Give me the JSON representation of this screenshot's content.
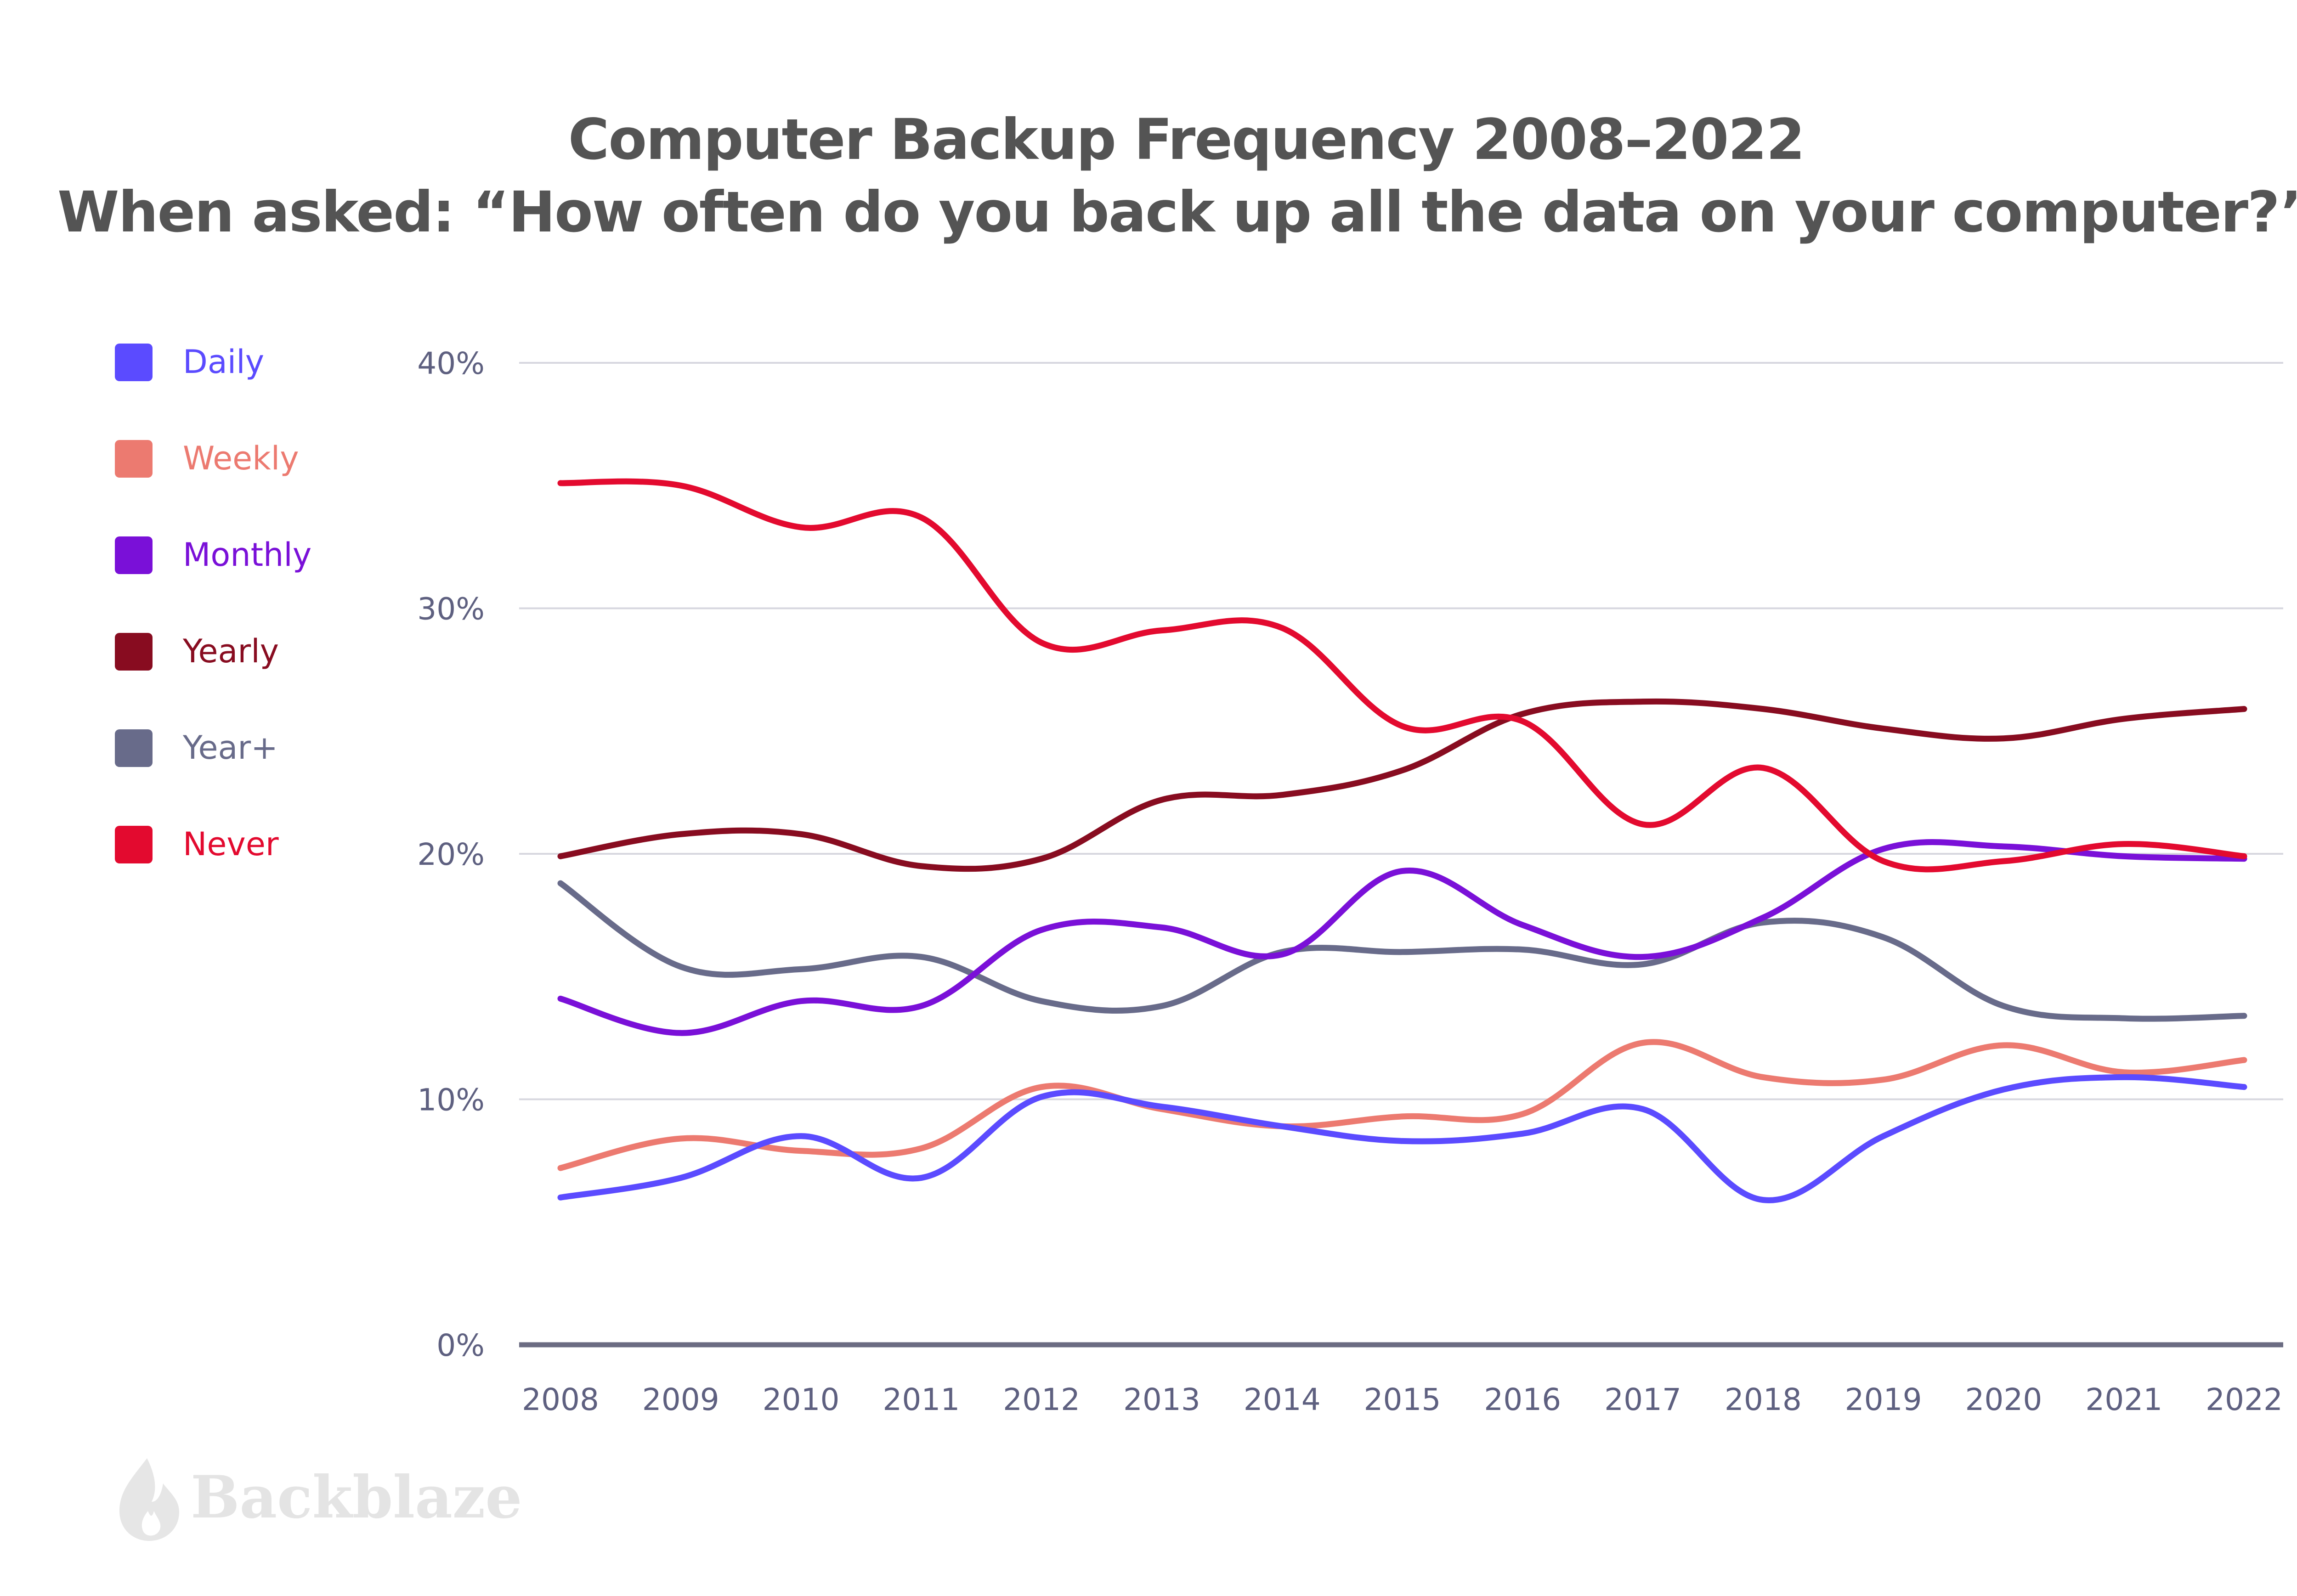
{
  "title": {
    "line1": "Computer Backup Frequency 2008–2022",
    "line2": "When asked: “How often do you back up all the data on your computer?”"
  },
  "logo": {
    "text": "Backblaze",
    "icon": "flame-icon"
  },
  "chart_data": {
    "type": "line",
    "title": "Computer Backup Frequency 2008–2022",
    "subtitle": "When asked: “How often do you back up all the data on your computer?”",
    "categories": [
      "2008",
      "2009",
      "2010",
      "2011",
      "2012",
      "2013",
      "2014",
      "2015",
      "2016",
      "2017",
      "2018",
      "2019",
      "2020",
      "2021",
      "2022"
    ],
    "ylim": [
      0,
      40
    ],
    "yticks": [
      0,
      10,
      20,
      30,
      40
    ],
    "ytick_labels": [
      "0%",
      "10%",
      "20%",
      "30%",
      "40%"
    ],
    "grid": true,
    "legend_position": "left",
    "series": [
      {
        "name": "Daily",
        "color": "#5b4bff",
        "values": [
          6,
          6.8,
          8.5,
          6.8,
          10.1,
          9.7,
          8.9,
          8.3,
          8.6,
          9.6,
          5.9,
          8.5,
          10.4,
          10.9,
          10.5
        ]
      },
      {
        "name": "Weekly",
        "color": "#ec7a70",
        "values": [
          7.2,
          8.4,
          7.9,
          8.0,
          10.5,
          9.6,
          8.9,
          9.3,
          9.4,
          12.3,
          10.9,
          10.8,
          12.2,
          11.1,
          11.6
        ]
      },
      {
        "name": "Monthly",
        "color": "#7a10d8",
        "values": [
          14.1,
          12.7,
          14.0,
          13.8,
          16.9,
          17.0,
          15.9,
          19.3,
          17.1,
          15.8,
          17.4,
          20.2,
          20.3,
          19.9,
          19.8
        ]
      },
      {
        "name": "Yearly",
        "color": "#880c20",
        "values": [
          19.9,
          20.8,
          20.8,
          19.5,
          19.8,
          22.2,
          22.4,
          23.4,
          25.7,
          26.2,
          25.9,
          25.1,
          24.7,
          25.5,
          25.9
        ]
      },
      {
        "name": "Year+",
        "color": "#686b8a",
        "values": [
          18.8,
          15.4,
          15.3,
          15.8,
          14.0,
          13.8,
          16.0,
          16.0,
          16.1,
          15.5,
          17.2,
          16.6,
          13.8,
          13.3,
          13.4
        ]
      },
      {
        "name": "Never",
        "color": "#e30a2f",
        "values": [
          35.1,
          35.0,
          33.3,
          33.7,
          28.6,
          29.1,
          29.2,
          25.2,
          25.4,
          21.2,
          23.5,
          19.7,
          19.7,
          20.4,
          19.9
        ]
      }
    ]
  }
}
